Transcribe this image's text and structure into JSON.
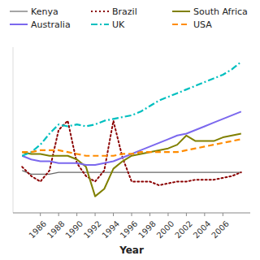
{
  "chart_data": {
    "type": "line",
    "xlabel": "Year",
    "x": [
      1984,
      1985,
      1986,
      1987,
      1988,
      1989,
      1990,
      1991,
      1992,
      1993,
      1994,
      1995,
      1996,
      1997,
      1998,
      1999,
      2000,
      2001,
      2002,
      2003,
      2004,
      2005,
      2006,
      2007,
      2008
    ],
    "series": [
      {
        "name": "Kenya",
        "color": "#696969",
        "line_style": "solid",
        "values": [
          28,
          26,
          26,
          26,
          27,
          27,
          27,
          27,
          27,
          27,
          27,
          27,
          27,
          27,
          27,
          27,
          27,
          27,
          27,
          27,
          27,
          27,
          27,
          27,
          27
        ]
      },
      {
        "name": "Brazil",
        "color": "#8B0000",
        "line_style": "dotted",
        "values": [
          30,
          25,
          22,
          28,
          50,
          55,
          32,
          25,
          22,
          28,
          55,
          35,
          22,
          22,
          22,
          20,
          21,
          22,
          22,
          23,
          23,
          23,
          24,
          25,
          27
        ]
      },
      {
        "name": "South Africa",
        "color": "#808000",
        "line_style": "solid",
        "values": [
          38,
          37,
          37,
          36,
          36,
          36,
          34,
          30,
          14,
          18,
          29,
          33,
          36,
          37,
          38,
          39,
          40,
          42,
          47,
          44,
          44,
          44,
          46,
          47,
          48
        ]
      },
      {
        "name": "Australia",
        "color": "#7B68EE",
        "line_style": "solid",
        "values": [
          36,
          34,
          33,
          33,
          32,
          32,
          32,
          31,
          31,
          32,
          33,
          35,
          37,
          39,
          41,
          43,
          45,
          47,
          48,
          50,
          52,
          54,
          56,
          58,
          60
        ]
      },
      {
        "name": "UK",
        "color": "#00BFBF",
        "line_style": "dash-dot",
        "values": [
          36,
          38,
          42,
          48,
          53,
          52,
          53,
          52,
          53,
          55,
          56,
          57,
          58,
          60,
          63,
          66,
          68,
          70,
          72,
          74,
          76,
          78,
          80,
          83,
          87
        ]
      },
      {
        "name": "USA",
        "color": "#FF8C00",
        "line_style": "dashed",
        "values": [
          38,
          38,
          39,
          39,
          39,
          38,
          37,
          36,
          36,
          36,
          36,
          37,
          37,
          38,
          38,
          38,
          38,
          38,
          39,
          40,
          41,
          42,
          43,
          44,
          45
        ]
      }
    ],
    "xlim": [
      1983,
      2009
    ],
    "ylim": [
      5,
      95
    ],
    "xticks": [
      1986,
      1988,
      1990,
      1992,
      1994,
      1996,
      1998,
      2000,
      2002,
      2004,
      2006
    ],
    "tick_labels": "x",
    "grid": false,
    "legend": "top"
  }
}
